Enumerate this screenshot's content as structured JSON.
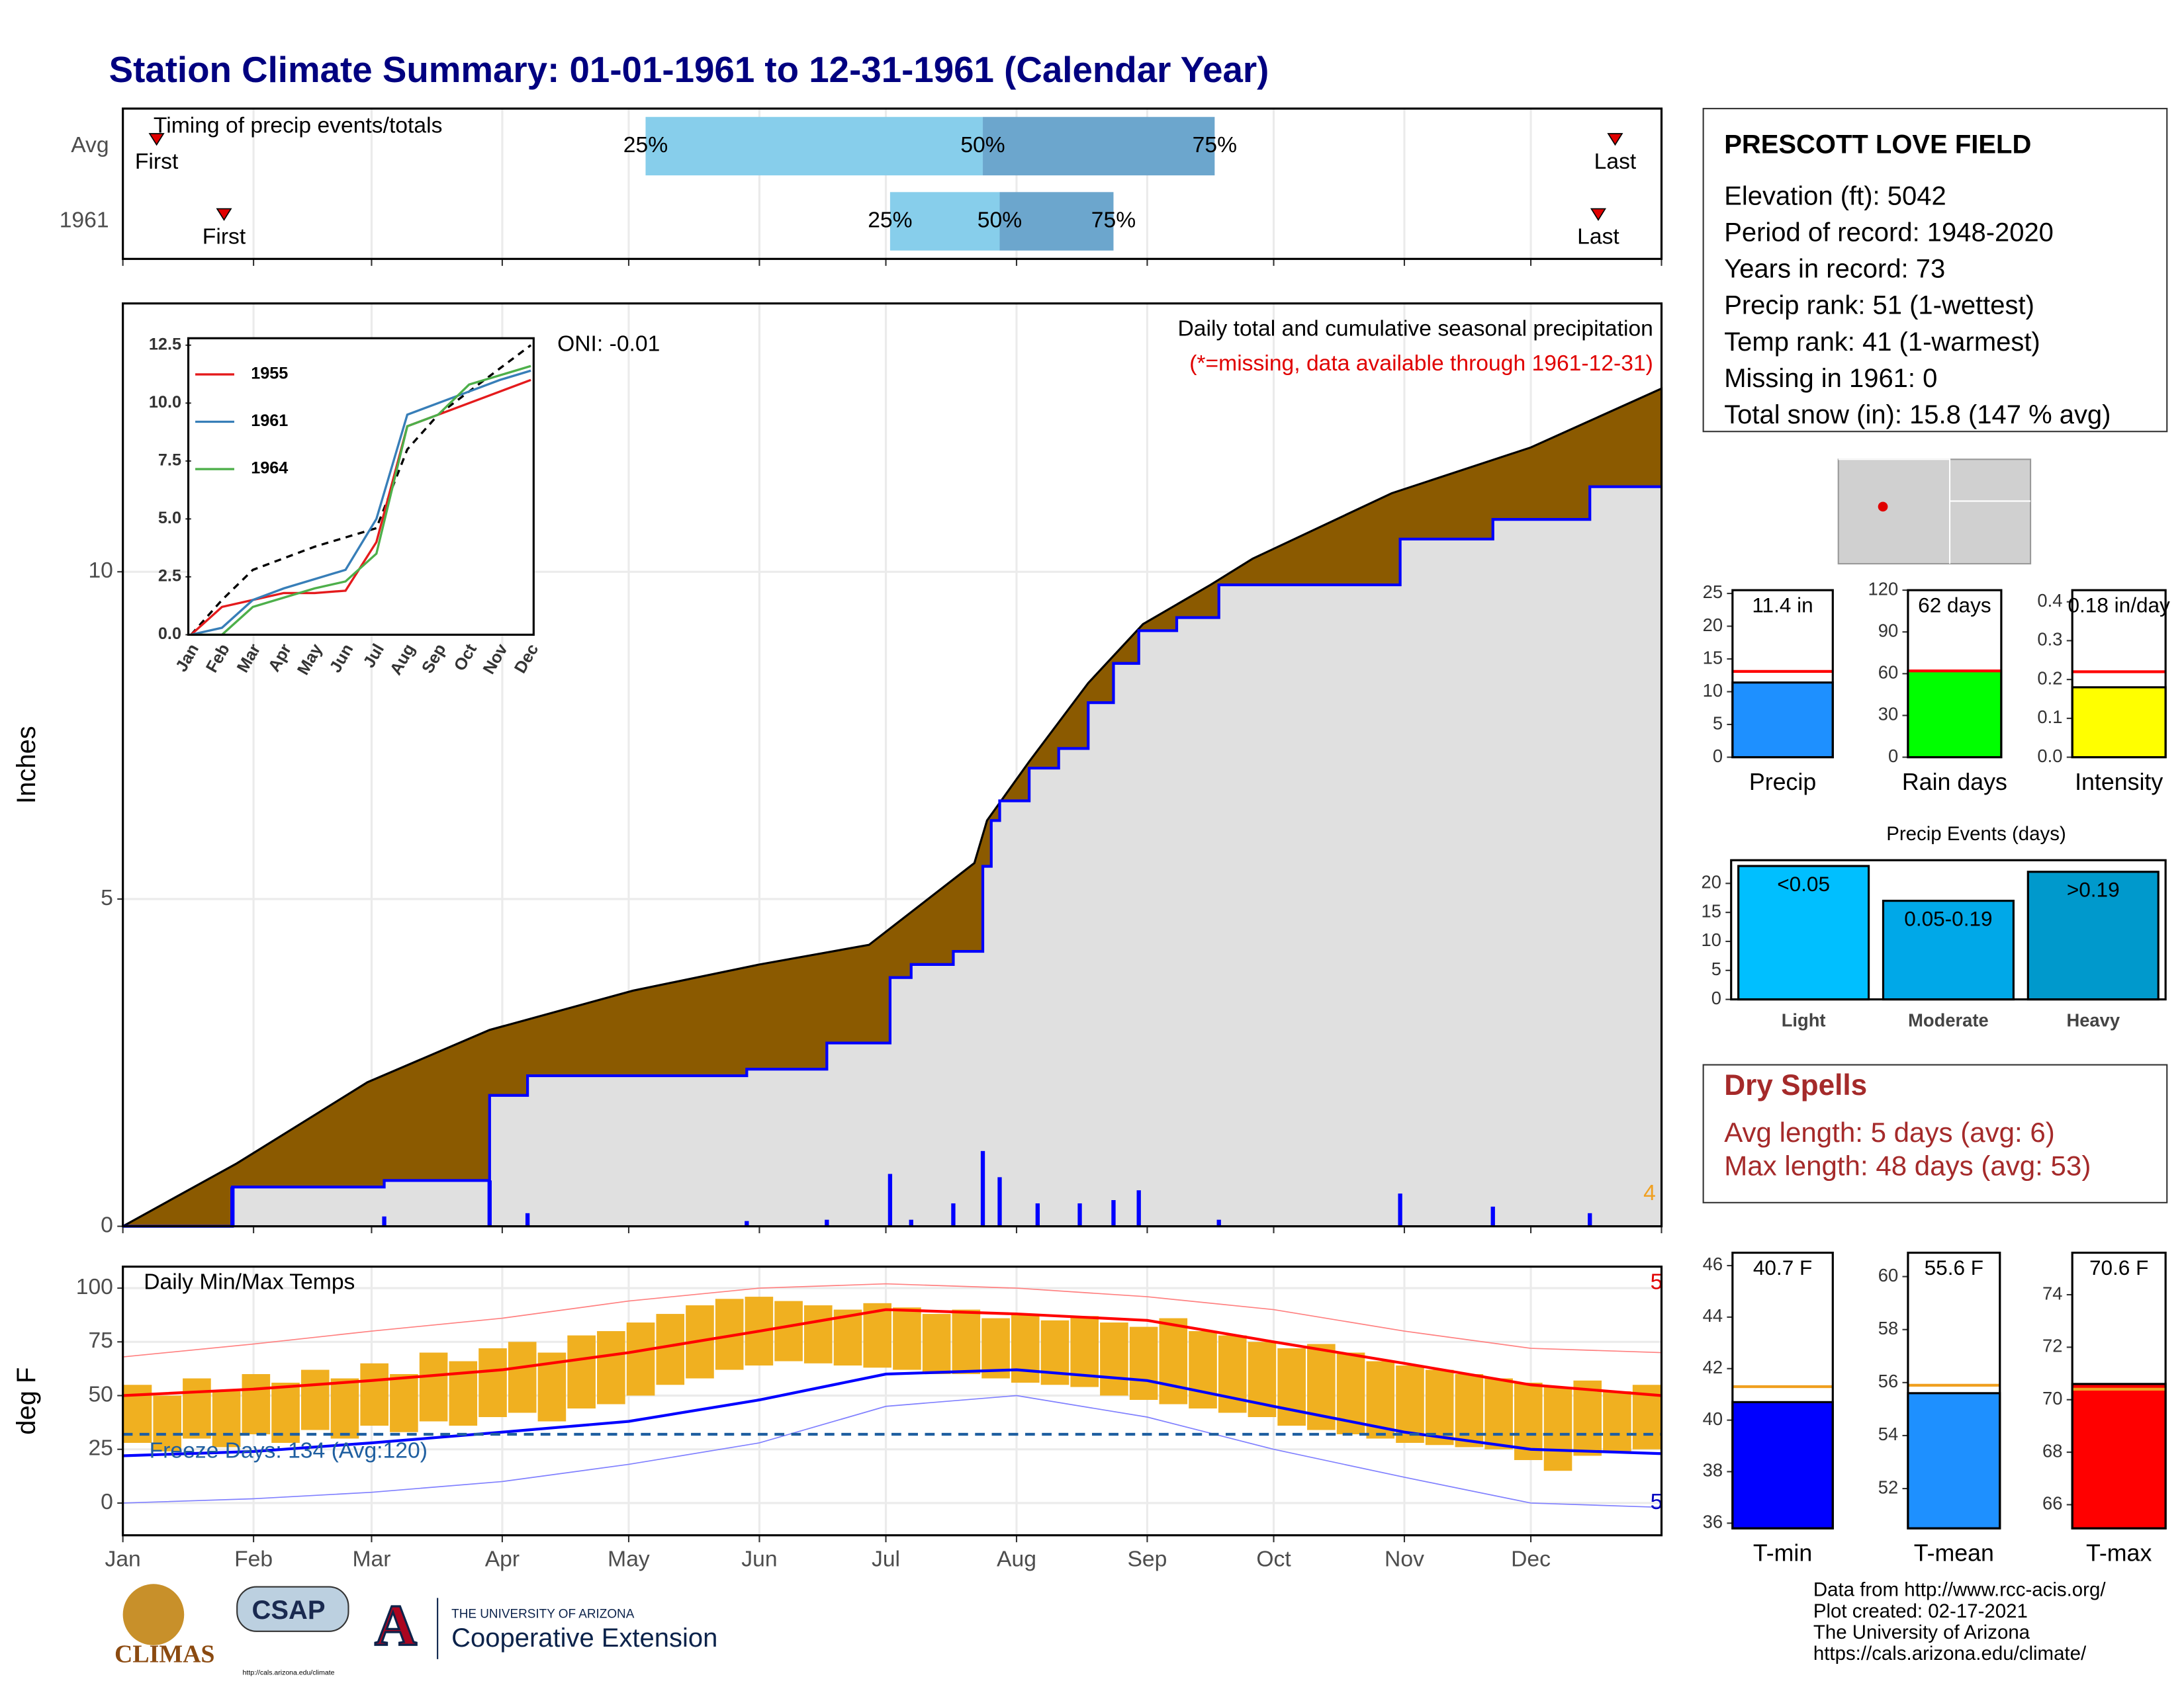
{
  "title": "Station Climate Summary: 01-01-1961 to 12-31-1961 (Calendar Year)",
  "chart_data": [
    {
      "type": "timing",
      "title": "Timing of precip events/totals",
      "categories": [
        "Avg",
        "1961"
      ],
      "xlim": [
        0,
        365
      ],
      "xticks": [
        0,
        31,
        59,
        90,
        120,
        151,
        181,
        212,
        243,
        273,
        304,
        334,
        365
      ],
      "markers": [
        {
          "label": "First",
          "values": [
            8,
            24
          ]
        },
        {
          "label": "Last",
          "values": [
            354,
            350
          ]
        }
      ],
      "marker_color": "#e00000",
      "quartiles": [
        {
          "label": "25%",
          "values": [
            124,
            182
          ]
        },
        {
          "label": "50%",
          "values": [
            204,
            208
          ]
        },
        {
          "label": "75%",
          "values": [
            259,
            235
          ]
        }
      ],
      "colors": [
        "#87ceeb",
        "#6ca6cd"
      ]
    },
    {
      "type": "cumulative",
      "subtitle": "Daily total and cumulative seasonal precipitation",
      "note": "(*=missing, data available through 1961-12-31)",
      "annotation": "ONI: -0.01",
      "count_label": "4",
      "ylabel": "Inches",
      "xlim": [
        0,
        365
      ],
      "xticks": [
        0,
        31,
        59,
        90,
        120,
        151,
        181,
        212,
        243,
        273,
        304,
        334,
        365
      ],
      "ylim": [
        0,
        14.1
      ],
      "yticks": [
        0,
        5,
        10
      ],
      "series": [
        {
          "color": "#8b5a00",
          "x": [
            0,
            27,
            58,
            87,
            121,
            151,
            177,
            202,
            205,
            215,
            229,
            242,
            258,
            268,
            301,
            334,
            365
          ],
          "values": [
            0,
            0.96,
            2.2,
            3.0,
            3.6,
            4.0,
            4.3,
            5.55,
            6.2,
            7.1,
            8.3,
            9.2,
            9.8,
            10.2,
            11.2,
            11.9,
            12.8
          ]
        },
        {
          "color": "#0000ff",
          "fill": "#e0e0e0",
          "x": [
            0,
            26,
            62,
            87,
            96,
            148,
            167,
            182,
            187,
            197,
            204,
            206,
            208,
            215,
            222,
            229,
            235,
            241,
            250,
            260,
            303,
            325,
            348,
            365
          ],
          "values": [
            0,
            0.6,
            0.7,
            2.0,
            2.3,
            2.4,
            2.8,
            3.8,
            4.0,
            4.2,
            5.5,
            6.2,
            6.5,
            7.0,
            7.3,
            8.0,
            8.6,
            9.1,
            9.3,
            9.8,
            10.5,
            10.8,
            11.3,
            11.3
          ]
        }
      ],
      "daily": {
        "color": "#0000ff",
        "x": [
          26,
          62,
          87,
          96,
          148,
          167,
          182,
          187,
          197,
          204,
          208,
          217,
          227,
          235,
          241,
          260,
          303,
          325,
          348
        ],
        "values": [
          0.6,
          0.15,
          0.7,
          0.2,
          0.08,
          0.1,
          0.8,
          0.1,
          0.35,
          1.15,
          0.75,
          0.35,
          0.35,
          0.4,
          0.55,
          0.1,
          0.5,
          0.3,
          0.2
        ]
      }
    },
    {
      "type": "line",
      "categories": [
        "Jan",
        "Feb",
        "Mar",
        "Apr",
        "May",
        "Jun",
        "Jul",
        "Aug",
        "Sep",
        "Oct",
        "Nov",
        "Dec"
      ],
      "ylim": [
        0,
        12.8
      ],
      "yticks": [
        {
          "value": 0,
          "label": "0.0"
        },
        2.5,
        {
          "value": 5,
          "label": "5.0"
        },
        7.5,
        {
          "value": 10,
          "label": "10.0"
        },
        12.5
      ],
      "series": [
        {
          "color": "#000000",
          "dash": true,
          "values": [
            0,
            1.5,
            2.8,
            3.3,
            3.8,
            4.2,
            4.6,
            8.0,
            9.5,
            10.5,
            11.5,
            12.5
          ]
        },
        {
          "name": "1955",
          "color": "#e41a1c",
          "values": [
            0,
            1.2,
            1.5,
            1.8,
            1.8,
            1.9,
            4.0,
            9.0,
            9.5,
            10.0,
            10.5,
            11.0
          ]
        },
        {
          "name": "1961",
          "color": "#377eb8",
          "values": [
            0,
            0.3,
            1.5,
            2.0,
            2.4,
            2.8,
            5.0,
            9.5,
            10.0,
            10.5,
            11.0,
            11.4
          ]
        },
        {
          "name": "1964",
          "color": "#4daf4a",
          "values": [
            0,
            0,
            1.2,
            1.6,
            2.0,
            2.3,
            3.5,
            9.0,
            9.5,
            10.8,
            11.2,
            11.6
          ]
        }
      ]
    },
    {
      "type": "temps",
      "title": "Daily Min/Max Temps",
      "ylabel": "deg F",
      "freeze_label": "Freeze Days: 134 (Avg:120)",
      "freeze": 32,
      "high_count": "5",
      "low_count": "5",
      "xlim": [
        0,
        365
      ],
      "xticks": [
        {
          "value": 0,
          "label": "Jan"
        },
        {
          "value": 31,
          "label": "Feb"
        },
        {
          "value": 59,
          "label": "Mar"
        },
        {
          "value": 90,
          "label": "Apr"
        },
        {
          "value": 120,
          "label": "May"
        },
        {
          "value": 151,
          "label": "Jun"
        },
        {
          "value": 181,
          "label": "Jul"
        },
        {
          "value": 212,
          "label": "Aug"
        },
        {
          "value": 243,
          "label": "Sep"
        },
        {
          "value": 273,
          "label": "Oct"
        },
        {
          "value": 304,
          "label": "Nov"
        },
        {
          "value": 334,
          "label": "Dec"
        }
      ],
      "ylim": [
        -15,
        110
      ],
      "yticks": [
        0,
        25,
        50,
        75,
        100
      ],
      "bar_color": "#f0b020",
      "bars": {
        "highs": [
          55,
          50,
          58,
          52,
          60,
          56,
          62,
          58,
          65,
          60,
          70,
          66,
          72,
          75,
          70,
          78,
          80,
          84,
          88,
          92,
          95,
          96,
          94,
          92,
          90,
          93,
          91,
          88,
          90,
          86,
          88,
          85,
          87,
          84,
          82,
          86,
          80,
          78,
          75,
          72,
          74,
          70,
          66,
          64,
          62,
          60,
          58,
          56,
          54,
          57,
          52,
          55
        ],
        "lows": [
          28,
          24,
          30,
          26,
          32,
          28,
          34,
          30,
          36,
          33,
          38,
          36,
          40,
          42,
          38,
          44,
          46,
          50,
          55,
          58,
          62,
          64,
          66,
          65,
          64,
          63,
          62,
          60,
          60,
          58,
          56,
          55,
          54,
          50,
          48,
          46,
          44,
          42,
          40,
          36,
          34,
          32,
          30,
          28,
          27,
          26,
          25,
          20,
          15,
          22,
          24,
          25
        ]
      },
      "x": [
        0,
        31,
        59,
        90,
        120,
        151,
        181,
        212,
        243,
        273,
        304,
        334,
        365
      ],
      "series": [
        {
          "color": "#ff8080",
          "width": 0.8,
          "values": [
            68,
            74,
            80,
            86,
            94,
            100,
            102,
            100,
            96,
            90,
            80,
            72,
            70
          ]
        },
        {
          "color": "#8080ff",
          "width": 0.8,
          "values": [
            0,
            2,
            5,
            10,
            18,
            28,
            45,
            50,
            40,
            25,
            12,
            0,
            -2
          ]
        },
        {
          "color": "#ff0000",
          "width": 2,
          "values": [
            50,
            53,
            57,
            62,
            70,
            80,
            90,
            88,
            85,
            75,
            65,
            55,
            50
          ]
        },
        {
          "color": "#0000ff",
          "width": 2,
          "values": [
            22,
            24,
            28,
            33,
            38,
            48,
            60,
            62,
            57,
            45,
            33,
            25,
            23
          ]
        }
      ]
    },
    {
      "type": "gauge",
      "label": "Precip",
      "values": [
        11.4
      ],
      "value_labels": [
        "11.4 in"
      ],
      "color": "#1e90ff",
      "avg": 13.1,
      "avg_color": "#ff0000",
      "ylim": [
        0,
        25.5
      ],
      "yticks": [
        0,
        5,
        10,
        15,
        20,
        25
      ]
    },
    {
      "type": "gauge",
      "label": "Rain days",
      "values": [
        62
      ],
      "value_labels": [
        "62 days"
      ],
      "color": "#00ff00",
      "avg": 62,
      "avg_color": "#ff0000",
      "ylim": [
        0,
        120
      ],
      "yticks": [
        0,
        30,
        60,
        90,
        120
      ]
    },
    {
      "type": "gauge",
      "label": "Intensity",
      "values": [
        0.18
      ],
      "value_labels": [
        "0.18 in/day"
      ],
      "color": "#ffff00",
      "avg": 0.22,
      "avg_color": "#ff0000",
      "ylim": [
        0,
        0.43
      ],
      "yticks": [
        {
          "value": 0,
          "label": "0.0"
        },
        0.1,
        0.2,
        0.3,
        0.4
      ]
    },
    {
      "type": "bar",
      "title": "Precip Events (days)",
      "categories": [
        "Light",
        "Moderate",
        "Heavy"
      ],
      "bin_labels": [
        "<0.05",
        "0.05-0.19",
        ">0.19"
      ],
      "values": [
        23,
        17,
        22
      ],
      "colors": [
        "#00bfff",
        "#00a8e8",
        "#0099cc"
      ],
      "ylim": [
        0,
        24
      ],
      "yticks": [
        0,
        5,
        10,
        15,
        20
      ]
    },
    {
      "type": "gauge",
      "label": "T-min",
      "values": [
        40.7
      ],
      "value_labels": [
        "40.7 F"
      ],
      "color": "#0000ff",
      "avg": 41.3,
      "avg_color": "#f0a020",
      "ylim": [
        35.8,
        46.5
      ],
      "yticks": [
        36,
        38,
        40,
        42,
        44,
        46
      ]
    },
    {
      "type": "gauge",
      "label": "T-mean",
      "values": [
        55.6
      ],
      "value_labels": [
        "55.6 F"
      ],
      "color": "#1e90ff",
      "avg": 55.9,
      "avg_color": "#f0a020",
      "ylim": [
        50.5,
        60.9
      ],
      "yticks": [
        52,
        54,
        56,
        58,
        60
      ]
    },
    {
      "type": "gauge",
      "label": "T-max",
      "values": [
        70.6
      ],
      "value_labels": [
        "70.6 F"
      ],
      "color": "#ff0000",
      "avg": 70.4,
      "avg_color": "#f0a020",
      "ylim": [
        65.1,
        75.6
      ],
      "yticks": [
        66,
        68,
        70,
        72,
        74
      ]
    }
  ],
  "station": {
    "title": "PRESCOTT LOVE FIELD",
    "lines": [
      "Elevation (ft): 5042",
      "Period of record: 1948-2020",
      "Years in record: 73",
      "Precip rank: 51 (1-wettest)",
      "Temp rank: 41 (1-warmest)",
      "Missing in 1961: 0",
      "Total snow (in): 15.8 (147 % avg)"
    ]
  },
  "dry_spells": {
    "title": "Dry Spells",
    "lines": [
      "Avg length: 5 days (avg: 6)",
      "Max length: 48 days (avg: 53)"
    ]
  },
  "credits": [
    "Data from http://www.rcc-acis.org/",
    "Plot created: 02-17-2021",
    "The University of Arizona",
    "https://cals.arizona.edu/climate/"
  ],
  "logos": {
    "climas": "CLIMAS",
    "csap": "CSAP",
    "csap_url": "http://cals.arizona.edu/climate",
    "ua": "THE UNIVERSITY OF ARIZONA",
    "extension": "Cooperative Extension"
  }
}
